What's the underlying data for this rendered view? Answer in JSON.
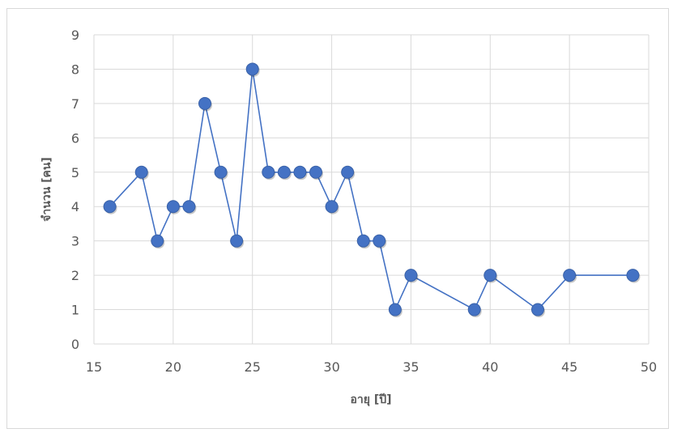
{
  "chart_data": {
    "type": "scatter",
    "xlabel": "อายุ [ปี]",
    "ylabel": "จำนวน [คน]",
    "xlim": [
      15,
      50
    ],
    "ylim": [
      0,
      9
    ],
    "xticks": [
      15,
      20,
      25,
      30,
      35,
      40,
      45,
      50
    ],
    "yticks": [
      0,
      1,
      2,
      3,
      4,
      5,
      6,
      7,
      8,
      9
    ],
    "grid": true,
    "series": [
      {
        "x": [
          16,
          18,
          19,
          20,
          21,
          22,
          23,
          24,
          25,
          26,
          27,
          28,
          29,
          30,
          31,
          32,
          33,
          34,
          35,
          39,
          40,
          43,
          45,
          49
        ],
        "y": [
          4,
          5,
          3,
          4,
          4,
          7,
          5,
          3,
          8,
          5,
          5,
          5,
          5,
          4,
          5,
          3,
          3,
          1,
          2,
          1,
          2,
          1,
          2,
          2
        ]
      }
    ]
  },
  "colors": {
    "line": "#4472c4",
    "marker": "#4472c4",
    "grid": "#d9d9d9",
    "axis_text": "#595959"
  }
}
